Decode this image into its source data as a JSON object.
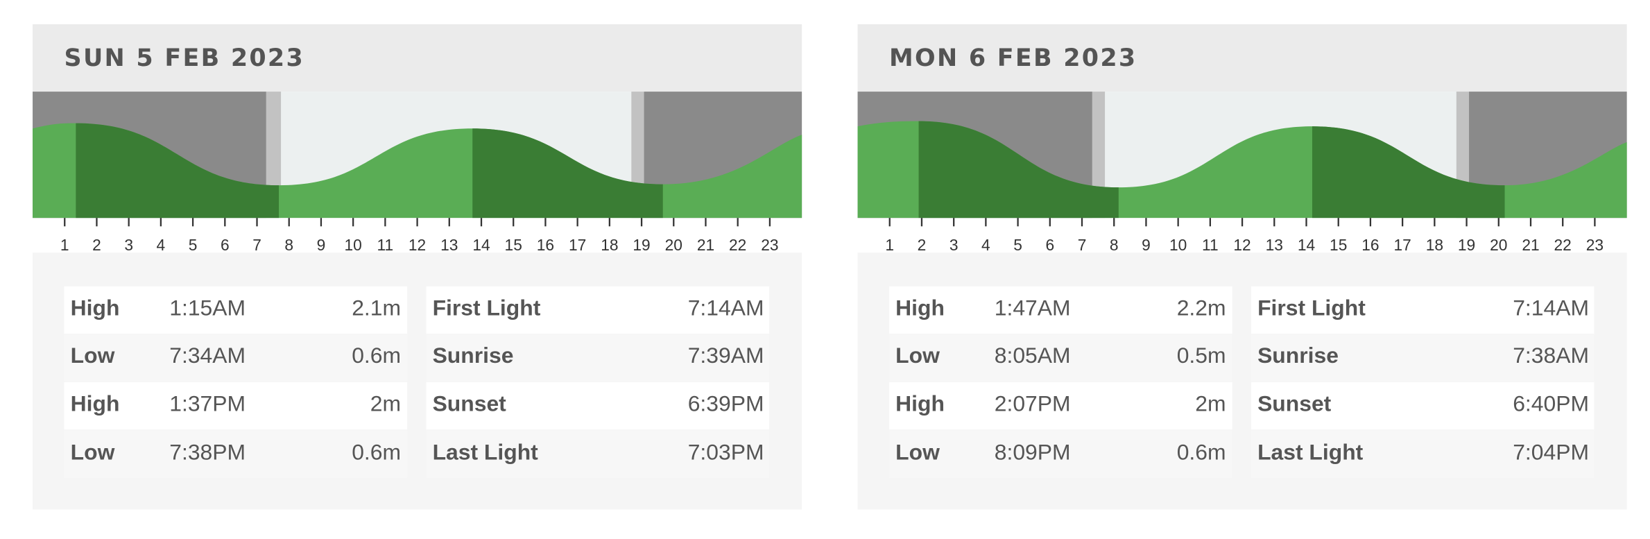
{
  "days": [
    {
      "title": "SUN 5 FEB 2023",
      "hours": [
        1,
        2,
        3,
        4,
        5,
        6,
        7,
        8,
        9,
        10,
        11,
        12,
        13,
        14,
        15,
        16,
        17,
        18,
        19,
        20,
        21,
        22,
        23
      ],
      "tides": [
        {
          "type": "High",
          "time": "1:15AM",
          "height": "2.1m"
        },
        {
          "type": "Low",
          "time": "7:34AM",
          "height": "0.6m"
        },
        {
          "type": "High",
          "time": "1:37PM",
          "height": "2m"
        },
        {
          "type": "Low",
          "time": "7:38PM",
          "height": "0.6m"
        }
      ],
      "sun": [
        {
          "label": "First Light",
          "time": "7:14AM"
        },
        {
          "label": "Sunrise",
          "time": "7:39AM"
        },
        {
          "label": "Sunset",
          "time": "6:39PM"
        },
        {
          "label": "Last Light",
          "time": "7:03PM"
        }
      ]
    },
    {
      "title": "MON 6 FEB 2023",
      "hours": [
        1,
        2,
        3,
        4,
        5,
        6,
        7,
        8,
        9,
        10,
        11,
        12,
        13,
        14,
        15,
        16,
        17,
        18,
        19,
        20,
        21,
        22,
        23
      ],
      "tides": [
        {
          "type": "High",
          "time": "1:47AM",
          "height": "2.2m"
        },
        {
          "type": "Low",
          "time": "8:05AM",
          "height": "0.5m"
        },
        {
          "type": "High",
          "time": "2:07PM",
          "height": "2m"
        },
        {
          "type": "Low",
          "time": "8:09PM",
          "height": "0.6m"
        }
      ],
      "sun": [
        {
          "label": "First Light",
          "time": "7:14AM"
        },
        {
          "label": "Sunrise",
          "time": "7:38AM"
        },
        {
          "label": "Sunset",
          "time": "6:40PM"
        },
        {
          "label": "Last Light",
          "time": "7:04PM"
        }
      ]
    }
  ]
}
